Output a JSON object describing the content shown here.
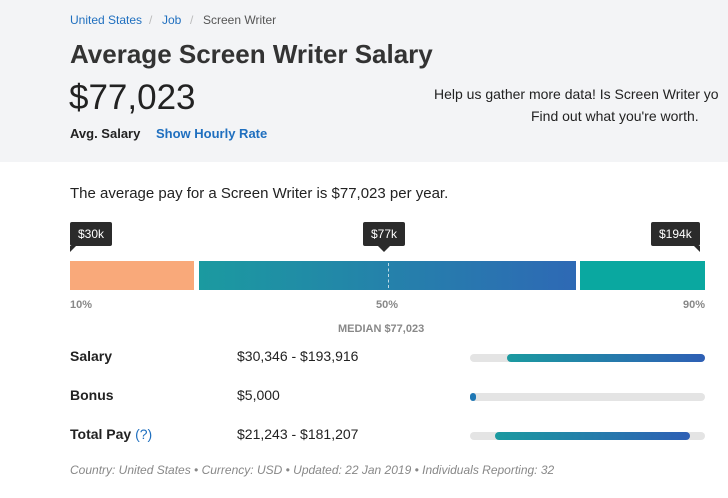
{
  "breadcrumb": [
    "United States",
    "Job",
    "Screen Writer"
  ],
  "header": {
    "title": "Average Screen Writer Salary",
    "salary": "$77,023",
    "avg_label": "Avg. Salary",
    "hourly_link": "Show Hourly Rate",
    "help_line1": "Help us gather more data! Is Screen Writer yo",
    "help_line2": "Find out what you're worth."
  },
  "summary": "The average pay for a Screen Writer is $77,023 per year.",
  "percentiles": [
    {
      "tooltip": "$30k",
      "label": "10%"
    },
    {
      "tooltip": "$77k",
      "label": "50%"
    },
    {
      "tooltip": "$194k",
      "label": "90%"
    }
  ],
  "median": "MEDIAN $77,023",
  "rows": [
    {
      "label": "Salary",
      "range": "$30,346 - $193,916"
    },
    {
      "label": "Bonus",
      "range": "$5,000"
    },
    {
      "label": "Total Pay",
      "help": "(?)",
      "range": "$21,243 - $181,207"
    }
  ],
  "footer": "Country: United States • Currency: USD • Updated: 22 Jan 2019 • Individuals Reporting: 32"
}
